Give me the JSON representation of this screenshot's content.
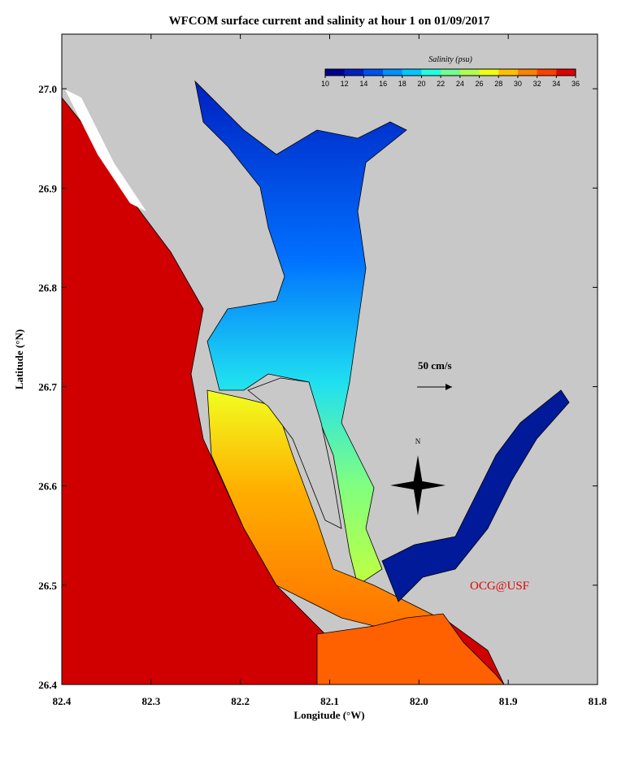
{
  "title": "WFCOM surface current and salinity at hour 1 on 01/09/2017",
  "x_axis": {
    "label": "Longitude (°W)",
    "lim": [
      82.4,
      81.8
    ],
    "ticks": [
      82.4,
      82.3,
      82.2,
      82.1,
      {
        "value": 82,
        "label": "82.0"
      },
      81.9,
      81.8
    ]
  },
  "y_axis": {
    "label": "Latitude (°N)",
    "lim": [
      26.4,
      27.055
    ],
    "ticks": [
      26.4,
      26.5,
      26.6,
      26.7,
      26.8,
      26.9,
      {
        "value": 27,
        "label": "27.0"
      }
    ]
  },
  "colorbar": {
    "title": "Salinity (psu)",
    "lim": [
      10,
      36
    ],
    "ticks": [
      10,
      12,
      14,
      16,
      18,
      20,
      22,
      24,
      26,
      28,
      30,
      32,
      34,
      36
    ],
    "colors": [
      "#00008f",
      "#0020c0",
      "#0050f0",
      "#0090ff",
      "#00c8ff",
      "#20ffe0",
      "#70ff90",
      "#b0ff50",
      "#f0ff10",
      "#ffc000",
      "#ff8000",
      "#ff4000",
      "#e00000"
    ]
  },
  "annotations": {
    "scale": "50 cm/s",
    "north": "N",
    "credit": "OCG@USF"
  }
}
